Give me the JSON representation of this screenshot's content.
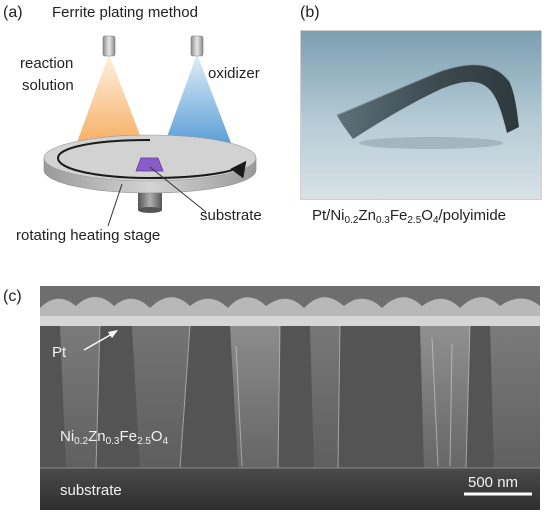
{
  "panel_a": {
    "tag": "(a)",
    "title": "Ferrite plating method",
    "reaction_line1": "reaction",
    "reaction_line2": "solution",
    "oxidizer": "oxidizer",
    "substrate": "substrate",
    "stage": "rotating heating stage"
  },
  "panel_b": {
    "tag": "(b)",
    "caption_pre": "Pt/Ni",
    "caption_s1": "0.2",
    "caption_mid1": "Zn",
    "caption_s2": "0.3",
    "caption_mid2": "Fe",
    "caption_s3": "2.5",
    "caption_mid3": "O",
    "caption_s4": "4",
    "caption_post": "/polyimide"
  },
  "panel_c": {
    "tag": "(c)",
    "pt_label": "Pt",
    "film_e1": "Ni",
    "film_s1": "0.2",
    "film_e2": "Zn",
    "film_s2": "0.3",
    "film_e3": "Fe",
    "film_s3": "2.5",
    "film_e4": "O",
    "film_s4": "4",
    "substrate_label": "substrate",
    "scale_bar": "500 nm"
  },
  "colors": {
    "reaction_spray": "#f6a24a",
    "oxidizer_spray": "#3f8fd0",
    "substrate_patch": "#8a5cc8",
    "stage": "#c8c8c8",
    "sem_background": "#3a3a3a"
  }
}
